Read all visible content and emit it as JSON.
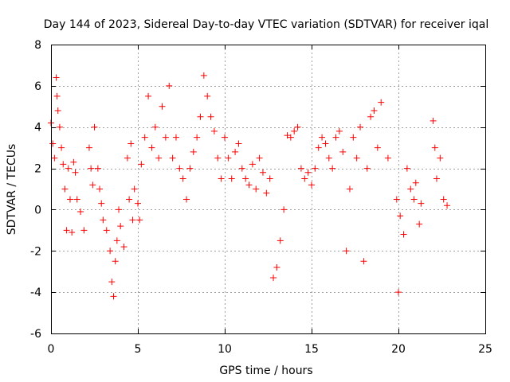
{
  "chart_data": {
    "type": "scatter",
    "title": "Day 144 of 2023, Sidereal Day-to-day VTEC variation (SDTVAR) for receiver iqal",
    "xlabel": "GPS time / hours",
    "ylabel": "SDTVAR / TECUs",
    "xlim": [
      0,
      25
    ],
    "ylim": [
      -6,
      8
    ],
    "xticks": [
      0,
      5,
      10,
      15,
      20,
      25
    ],
    "yticks": [
      -6,
      -4,
      -2,
      0,
      2,
      4,
      6,
      8
    ],
    "xtick_labels": [
      "0",
      "5",
      "10",
      "15",
      "20",
      "25"
    ],
    "ytick_labels": [
      "-6",
      "-4",
      "-2",
      "0",
      "2",
      "4",
      "6",
      "8"
    ],
    "grid": true,
    "marker": "+",
    "series": [
      {
        "name": "SDTVAR",
        "color": "#ff0000",
        "x": [
          0.0,
          0.1,
          0.2,
          0.3,
          0.35,
          0.4,
          0.5,
          0.6,
          0.7,
          0.8,
          0.9,
          1.0,
          1.1,
          1.2,
          1.3,
          1.4,
          1.5,
          1.7,
          1.9,
          2.2,
          2.3,
          2.4,
          2.5,
          2.7,
          2.8,
          2.9,
          3.0,
          3.2,
          3.4,
          3.5,
          3.6,
          3.7,
          3.8,
          3.9,
          4.0,
          4.2,
          4.4,
          4.5,
          4.6,
          4.7,
          4.8,
          5.0,
          5.1,
          5.2,
          5.4,
          5.6,
          5.8,
          6.0,
          6.2,
          6.4,
          6.6,
          6.8,
          7.0,
          7.2,
          7.4,
          7.6,
          7.8,
          8.0,
          8.2,
          8.4,
          8.6,
          8.8,
          9.0,
          9.2,
          9.4,
          9.6,
          9.8,
          10.0,
          10.2,
          10.4,
          10.6,
          10.8,
          11.0,
          11.2,
          11.4,
          11.6,
          11.8,
          12.0,
          12.2,
          12.4,
          12.6,
          12.8,
          13.0,
          13.2,
          13.4,
          13.6,
          13.8,
          14.0,
          14.2,
          14.4,
          14.6,
          14.8,
          15.0,
          15.2,
          15.4,
          15.6,
          15.8,
          16.0,
          16.2,
          16.4,
          16.6,
          16.8,
          17.0,
          17.2,
          17.4,
          17.6,
          17.8,
          18.0,
          18.2,
          18.4,
          18.6,
          18.8,
          19.0,
          19.4,
          19.9,
          20.0,
          20.1,
          20.3,
          20.5,
          20.7,
          20.9,
          21.0,
          21.2,
          21.3,
          22.0,
          22.1,
          22.2,
          22.4,
          22.6,
          22.8
        ],
        "y": [
          4.2,
          3.2,
          2.5,
          6.4,
          5.5,
          4.8,
          4.0,
          3.0,
          2.2,
          1.0,
          -1.0,
          2.0,
          0.5,
          -1.1,
          2.3,
          1.8,
          0.5,
          -0.1,
          -1.0,
          3.0,
          2.0,
          1.2,
          4.0,
          2.0,
          1.0,
          0.3,
          -0.5,
          -1.0,
          -2.0,
          -3.5,
          -4.2,
          -2.5,
          -1.5,
          0.0,
          -0.8,
          -1.8,
          2.5,
          0.5,
          3.2,
          -0.5,
          1.0,
          0.3,
          -0.5,
          2.2,
          3.5,
          5.5,
          3.0,
          4.0,
          2.5,
          5.0,
          3.5,
          6.0,
          2.5,
          3.5,
          2.0,
          1.5,
          0.5,
          2.0,
          2.8,
          3.5,
          4.5,
          6.5,
          5.5,
          4.5,
          3.8,
          2.5,
          1.5,
          3.5,
          2.5,
          1.5,
          2.8,
          3.2,
          2.0,
          1.5,
          1.2,
          2.2,
          1.0,
          2.5,
          1.8,
          0.8,
          1.5,
          -3.3,
          -2.8,
          -1.5,
          0.0,
          3.6,
          3.5,
          3.8,
          4.0,
          2.0,
          1.5,
          1.8,
          1.2,
          2.0,
          3.0,
          3.5,
          3.2,
          2.5,
          2.0,
          3.5,
          3.8,
          2.8,
          -2.0,
          1.0,
          3.5,
          2.5,
          4.0,
          -2.5,
          2.0,
          4.5,
          4.8,
          3.0,
          5.2,
          2.5,
          0.5,
          -4.0,
          -0.3,
          -1.2,
          2.0,
          1.0,
          0.5,
          1.3,
          -0.7,
          0.3,
          4.3,
          3.0,
          1.5,
          2.5,
          0.5,
          0.2
        ]
      }
    ]
  }
}
